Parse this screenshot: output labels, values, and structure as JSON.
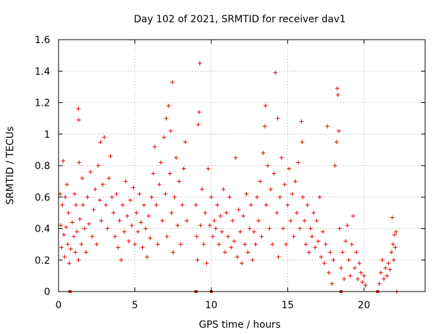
{
  "chart_data": {
    "type": "scatter",
    "title": "Day 102 of 2021, SRMTID for receiver dav1",
    "xlabel": "GPS time / hours",
    "ylabel": "SRMTID / TECUs",
    "xlim": [
      0,
      24
    ],
    "ylim": [
      0,
      1.6
    ],
    "x_ticks": [
      0,
      5,
      10,
      15,
      20
    ],
    "x_tick_labels": [
      "0",
      "5",
      "10",
      "15",
      "20"
    ],
    "y_ticks": [
      0,
      0.2,
      0.4,
      0.6,
      0.8,
      1,
      1.2,
      1.4,
      1.6
    ],
    "y_tick_labels": [
      "0",
      "0.2",
      "0.4",
      "0.6",
      "0.8",
      "1",
      "1.2",
      "1.4",
      "1.6"
    ],
    "grid": true,
    "marker": "+",
    "colors": {
      "series": "#e00000",
      "grid": "#a0a0a0",
      "frame": "#000000"
    },
    "series": [
      {
        "name": "SRMTID",
        "points": [
          [
            0.1,
            0.62
          ],
          [
            0.15,
            0.42
          ],
          [
            0.2,
            0.28
          ],
          [
            0.25,
            0.55
          ],
          [
            0.3,
            0.83
          ],
          [
            0.35,
            0.36
          ],
          [
            0.4,
            0.22
          ],
          [
            0.45,
            0.6
          ],
          [
            0.5,
            0.41
          ],
          [
            0.55,
            0.68
          ],
          [
            0.6,
            0.3
          ],
          [
            0.65,
            0.5
          ],
          [
            0.7,
            0.18
          ],
          [
            0.8,
            0.27
          ],
          [
            0.9,
            0.44
          ],
          [
            1.0,
            0.35
          ],
          [
            1.05,
            0.62
          ],
          [
            1.1,
            0.25
          ],
          [
            1.15,
            0.55
          ],
          [
            1.2,
            0.38
          ],
          [
            1.3,
            0.2
          ],
          [
            1.3,
            1.16
          ],
          [
            1.32,
            1.09
          ],
          [
            1.35,
            0.82
          ],
          [
            1.4,
            0.46
          ],
          [
            1.5,
            0.3
          ],
          [
            1.55,
            0.72
          ],
          [
            1.6,
            0.55
          ],
          [
            1.7,
            0.4
          ],
          [
            1.8,
            0.25
          ],
          [
            1.9,
            0.6
          ],
          [
            2.0,
            0.43
          ],
          [
            2.1,
            0.76
          ],
          [
            2.2,
            0.35
          ],
          [
            2.3,
            0.52
          ],
          [
            2.4,
            0.65
          ],
          [
            2.5,
            0.3
          ],
          [
            2.6,
            0.8
          ],
          [
            2.7,
            0.58
          ],
          [
            2.75,
            0.95
          ],
          [
            2.8,
            0.45
          ],
          [
            2.9,
            0.68
          ],
          [
            3.0,
            0.98
          ],
          [
            3.1,
            0.55
          ],
          [
            3.2,
            0.4
          ],
          [
            3.3,
            0.72
          ],
          [
            3.4,
            0.86
          ],
          [
            3.5,
            0.6
          ],
          [
            3.6,
            0.5
          ],
          [
            3.7,
            0.35
          ],
          [
            3.8,
            0.62
          ],
          [
            3.9,
            0.28
          ],
          [
            4.0,
            0.45
          ],
          [
            4.1,
            0.2
          ],
          [
            4.2,
            0.55
          ],
          [
            4.3,
            0.38
          ],
          [
            4.4,
            0.7
          ],
          [
            4.5,
            0.48
          ],
          [
            4.6,
            0.32
          ],
          [
            4.7,
            0.58
          ],
          [
            4.8,
            0.42
          ],
          [
            4.9,
            0.66
          ],
          [
            5.0,
            0.3
          ],
          [
            5.1,
            0.5
          ],
          [
            5.2,
            0.38
          ],
          [
            5.3,
            0.62
          ],
          [
            5.4,
            0.44
          ],
          [
            5.5,
            0.28
          ],
          [
            5.6,
            0.55
          ],
          [
            5.7,
            0.4
          ],
          [
            5.8,
            0.22
          ],
          [
            5.9,
            0.48
          ],
          [
            6.0,
            0.34
          ],
          [
            6.1,
            0.6
          ],
          [
            6.2,
            0.75
          ],
          [
            6.3,
            0.92
          ],
          [
            6.4,
            0.55
          ],
          [
            6.5,
            0.3
          ],
          [
            6.6,
            0.68
          ],
          [
            6.7,
            0.82
          ],
          [
            6.8,
            0.45
          ],
          [
            6.9,
            0.98
          ],
          [
            7.0,
            0.62
          ],
          [
            7.05,
            1.1
          ],
          [
            7.1,
            0.35
          ],
          [
            7.2,
            1.18
          ],
          [
            7.3,
            0.75
          ],
          [
            7.35,
            1.02
          ],
          [
            7.4,
            0.5
          ],
          [
            7.45,
            1.33
          ],
          [
            7.5,
            0.25
          ],
          [
            7.6,
            0.6
          ],
          [
            7.7,
            0.85
          ],
          [
            7.8,
            0.42
          ],
          [
            7.9,
            0.7
          ],
          [
            8.0,
            0.3
          ],
          [
            8.1,
            0.55
          ],
          [
            8.2,
            0.78
          ],
          [
            8.3,
            0.95
          ],
          [
            8.4,
            0.45
          ],
          [
            9.0,
            0.55
          ],
          [
            9.05,
            0.35
          ],
          [
            9.1,
            0.2
          ],
          [
            9.15,
            1.06
          ],
          [
            9.2,
            1.14
          ],
          [
            9.25,
            1.45
          ],
          [
            9.3,
            0.42
          ],
          [
            9.4,
            0.65
          ],
          [
            9.5,
            0.3
          ],
          [
            9.6,
            0.5
          ],
          [
            9.7,
            0.18
          ],
          [
            9.8,
            0.78
          ],
          [
            9.9,
            0.42
          ],
          [
            10.0,
            0.6
          ],
          [
            10.1,
            0.35
          ],
          [
            10.2,
            0.45
          ],
          [
            10.3,
            0.4
          ],
          [
            10.4,
            0.55
          ],
          [
            10.5,
            0.3
          ],
          [
            10.6,
            0.48
          ],
          [
            10.7,
            0.38
          ],
          [
            10.8,
            0.65
          ],
          [
            10.9,
            0.25
          ],
          [
            11.0,
            0.5
          ],
          [
            11.1,
            0.35
          ],
          [
            11.2,
            0.6
          ],
          [
            11.3,
            0.28
          ],
          [
            11.4,
            0.45
          ],
          [
            11.5,
            0.32
          ],
          [
            11.6,
            0.85
          ],
          [
            11.7,
            0.22
          ],
          [
            11.8,
            0.52
          ],
          [
            11.9,
            0.38
          ],
          [
            12.0,
            0.18
          ],
          [
            12.1,
            0.48
          ],
          [
            12.2,
            0.3
          ],
          [
            12.3,
            0.62
          ],
          [
            12.4,
            0.25
          ],
          [
            12.5,
            0.4
          ],
          [
            12.6,
            0.55
          ],
          [
            12.7,
            0.2
          ],
          [
            12.8,
            0.38
          ],
          [
            12.9,
            0.3
          ],
          [
            13.0,
            0.6
          ],
          [
            13.1,
            0.45
          ],
          [
            13.2,
            0.7
          ],
          [
            13.3,
            0.35
          ],
          [
            13.4,
            0.88
          ],
          [
            13.5,
            1.05
          ],
          [
            13.55,
            1.18
          ],
          [
            13.6,
            0.55
          ],
          [
            13.7,
            0.8
          ],
          [
            13.8,
            0.4
          ],
          [
            13.9,
            0.65
          ],
          [
            14.0,
            0.3
          ],
          [
            14.1,
            0.75
          ],
          [
            14.2,
            1.39
          ],
          [
            14.3,
            0.5
          ],
          [
            14.35,
            1.1
          ],
          [
            14.4,
            0.22
          ],
          [
            14.5,
            0.6
          ],
          [
            14.6,
            0.85
          ],
          [
            14.7,
            0.4
          ],
          [
            14.8,
            0.68
          ],
          [
            14.9,
            0.3
          ],
          [
            15.0,
            0.55
          ],
          [
            15.1,
            0.78
          ],
          [
            15.2,
            0.45
          ],
          [
            15.3,
            0.62
          ],
          [
            15.4,
            0.35
          ],
          [
            15.5,
            0.7
          ],
          [
            15.6,
            0.5
          ],
          [
            15.7,
            0.82
          ],
          [
            15.8,
            0.4
          ],
          [
            15.9,
            1.08
          ],
          [
            15.95,
            0.95
          ],
          [
            16.0,
            0.6
          ],
          [
            16.1,
            0.45
          ],
          [
            16.2,
            0.3
          ],
          [
            16.3,
            0.55
          ],
          [
            16.4,
            0.25
          ],
          [
            16.5,
            0.4
          ],
          [
            16.6,
            0.35
          ],
          [
            16.7,
            0.5
          ],
          [
            16.8,
            0.28
          ],
          [
            16.9,
            0.45
          ],
          [
            17.0,
            0.32
          ],
          [
            17.1,
            0.6
          ],
          [
            17.2,
            0.22
          ],
          [
            17.3,
            0.38
          ],
          [
            17.4,
            0.18
          ],
          [
            17.5,
            0.3
          ],
          [
            17.6,
            1.05
          ],
          [
            17.7,
            0.12
          ],
          [
            17.8,
            0.25
          ],
          [
            17.9,
            0.05
          ],
          [
            18.0,
            0.2
          ],
          [
            18.1,
            0.8
          ],
          [
            18.2,
            0.95
          ],
          [
            18.25,
            1.29
          ],
          [
            18.3,
            1.25
          ],
          [
            18.35,
            1.02
          ],
          [
            18.4,
            0.4
          ],
          [
            18.5,
            0.15
          ],
          [
            18.6,
            0.25
          ],
          [
            18.7,
            0.08
          ],
          [
            18.8,
            0.32
          ],
          [
            18.9,
            0.42
          ],
          [
            19.0,
            0.2
          ],
          [
            19.1,
            0.1
          ],
          [
            19.2,
            0.3
          ],
          [
            19.3,
            0.48
          ],
          [
            19.4,
            0.15
          ],
          [
            19.5,
            0.25
          ],
          [
            19.6,
            0.08
          ],
          [
            19.7,
            0.18
          ],
          [
            19.8,
            0.12
          ],
          [
            19.9,
            0.06
          ],
          [
            20.0,
            0.1
          ],
          [
            20.1,
            0.04
          ],
          [
            21.0,
            0.05
          ],
          [
            21.1,
            0.12
          ],
          [
            21.2,
            0.2
          ],
          [
            21.3,
            0.08
          ],
          [
            21.4,
            0.15
          ],
          [
            21.5,
            0.1
          ],
          [
            21.6,
            0.18
          ],
          [
            21.7,
            0.14
          ],
          [
            21.8,
            0.25
          ],
          [
            21.85,
            0.47
          ],
          [
            21.9,
            0.3
          ],
          [
            21.95,
            0.2
          ],
          [
            22.0,
            0.36
          ],
          [
            22.05,
            0.28
          ],
          [
            22.1,
            0.38
          ],
          [
            22.15,
            0.0
          ]
        ],
        "gaps_at_zero": [
          0.75,
          9.0,
          10.0,
          18.5,
          20.9
        ]
      }
    ]
  }
}
